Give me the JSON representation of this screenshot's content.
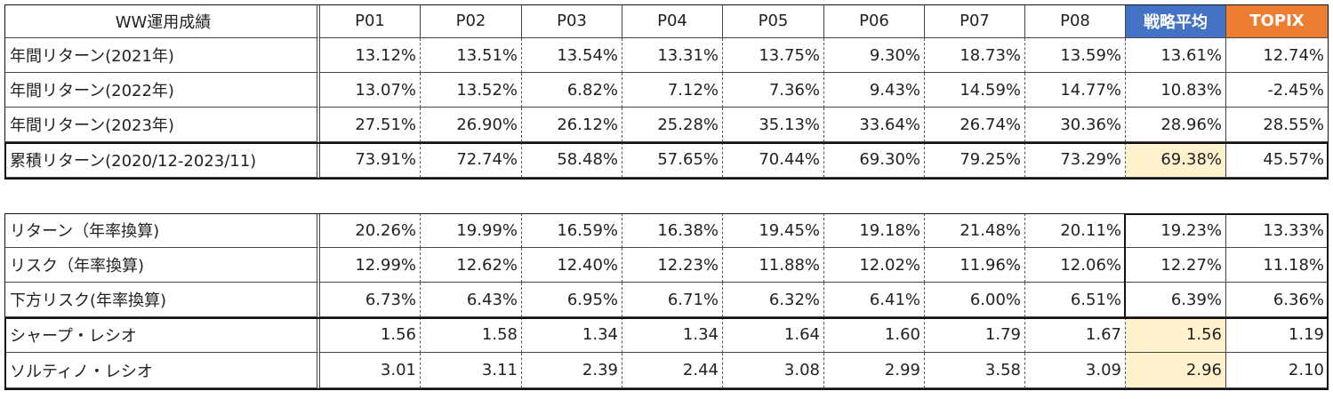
{
  "table1": {
    "header": [
      "WW運用成績",
      "P01",
      "P02",
      "P03",
      "P04",
      "P05",
      "P06",
      "P07",
      "P08",
      "戦略平均",
      "TOPIX"
    ],
    "rows": [
      [
        "年間リターン(2021年)",
        "13.12%",
        "13.51%",
        "13.54%",
        "13.31%",
        "13.75%",
        "9.30%",
        "18.73%",
        "13.59%",
        "13.61%",
        "12.74%"
      ],
      [
        "年間リターン(2022年)",
        "13.07%",
        "13.52%",
        "6.82%",
        "7.12%",
        "7.36%",
        "9.43%",
        "14.59%",
        "14.77%",
        "10.83%",
        "-2.45%"
      ],
      [
        "年間リターン(2023年)",
        "27.51%",
        "26.90%",
        "26.12%",
        "25.28%",
        "35.13%",
        "33.64%",
        "26.74%",
        "30.36%",
        "28.96%",
        "28.55%"
      ],
      [
        "累積リターン(2020/12-2023/11)",
        "73.91%",
        "72.74%",
        "58.48%",
        "57.65%",
        "70.44%",
        "69.30%",
        "79.25%",
        "73.29%",
        "69.38%",
        "45.57%"
      ]
    ]
  },
  "table2": {
    "rows": [
      [
        "リターン（年率換算)",
        "20.26%",
        "19.99%",
        "16.59%",
        "16.38%",
        "19.45%",
        "19.18%",
        "21.48%",
        "20.11%",
        "19.23%",
        "13.33%"
      ],
      [
        "リスク（年率換算)",
        "12.99%",
        "12.62%",
        "12.40%",
        "12.23%",
        "11.88%",
        "12.02%",
        "11.96%",
        "12.06%",
        "12.27%",
        "11.18%"
      ],
      [
        "下方リスク(年率換算)",
        "6.73%",
        "6.43%",
        "6.95%",
        "6.71%",
        "6.32%",
        "6.41%",
        "6.00%",
        "6.51%",
        "6.39%",
        "6.36%"
      ],
      [
        "シャープ・レシオ",
        "1.56",
        "1.58",
        "1.34",
        "1.34",
        "1.64",
        "1.60",
        "1.79",
        "1.67",
        "1.56",
        "1.19"
      ],
      [
        "ソルティノ・レシオ",
        "3.01",
        "3.11",
        "2.39",
        "2.44",
        "3.08",
        "2.99",
        "3.58",
        "3.09",
        "2.96",
        "2.10"
      ]
    ]
  }
}
